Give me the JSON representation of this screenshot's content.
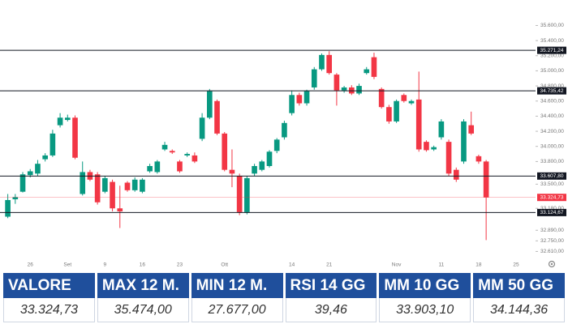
{
  "chart_data": {
    "type": "candlestick",
    "categories": [
      null,
      null,
      null,
      "26",
      null,
      null,
      null,
      null,
      "Set",
      null,
      null,
      null,
      null,
      "9",
      null,
      null,
      null,
      null,
      "16",
      null,
      null,
      null,
      null,
      "23",
      null,
      null,
      null,
      null,
      null,
      "Ott",
      null,
      null,
      null,
      null,
      null,
      null,
      null,
      null,
      "14",
      null,
      null,
      null,
      null,
      "21",
      null,
      null,
      null,
      null,
      null,
      null,
      null,
      null,
      "Nov",
      null,
      null,
      null,
      null,
      null,
      "11",
      null,
      null,
      null,
      null,
      "18",
      null,
      null,
      null,
      null,
      "25",
      null,
      null
    ],
    "open": [
      33070,
      33300,
      33400,
      33620,
      33640,
      33830,
      33880,
      34280,
      34350,
      34380,
      33370,
      33660,
      33630,
      33400,
      33530,
      33180,
      33520,
      33420,
      33400,
      33670,
      33660,
      33960,
      33940,
      33800,
      33880,
      33880,
      34100,
      34380,
      34600,
      34170,
      33690,
      33610,
      33130,
      33640,
      33690,
      33740,
      33940,
      34120,
      34440,
      34680,
      34570,
      34780,
      35020,
      35210,
      34950,
      34740,
      34780,
      34700,
      34970,
      35180,
      34760,
      34520,
      34330,
      34680,
      34570,
      34620,
      34060,
      33960,
      34120,
      34060,
      33690,
      33800,
      34280,
      33870,
      33800,
      null,
      null,
      null,
      null,
      null,
      null
    ],
    "high": [
      33370,
      33370,
      33660,
      33700,
      33820,
      33910,
      34220,
      34440,
      34420,
      34410,
      33800,
      33690,
      33660,
      33610,
      33560,
      33480,
      33540,
      33590,
      33580,
      33770,
      33820,
      34060,
      33960,
      33820,
      33920,
      33920,
      34440,
      34760,
      34620,
      34190,
      33960,
      33640,
      33610,
      33770,
      33820,
      33950,
      34110,
      34340,
      34740,
      34710,
      34750,
      35050,
      35230,
      35260,
      34970,
      34800,
      34810,
      34830,
      35050,
      35240,
      34780,
      34550,
      34620,
      34700,
      34620,
      34990,
      34080,
      34010,
      34360,
      34090,
      33720,
      34360,
      34460,
      33890,
      33820,
      null,
      null,
      null,
      null,
      null,
      null
    ],
    "low": [
      33050,
      33240,
      33390,
      33590,
      33610,
      33800,
      33860,
      34250,
      34330,
      33830,
      33350,
      33540,
      33230,
      33380,
      33140,
      32920,
      33400,
      33400,
      33380,
      33650,
      33640,
      33940,
      33900,
      33650,
      33860,
      33780,
      34070,
      34360,
      34150,
      33670,
      33460,
      33090,
      33100,
      33610,
      33670,
      33720,
      33910,
      34090,
      34410,
      34540,
      34540,
      34750,
      35000,
      34950,
      34540,
      34710,
      34680,
      34680,
      34950,
      34890,
      34500,
      34300,
      34310,
      34580,
      34550,
      33930,
      33930,
      33940,
      34090,
      33610,
      33530,
      33770,
      34150,
      33770,
      32760,
      null,
      null,
      null,
      null,
      null,
      null
    ],
    "close": [
      33290,
      33330,
      33630,
      33670,
      33770,
      33880,
      34170,
      34380,
      34380,
      33850,
      33660,
      33560,
      33260,
      33580,
      33180,
      33140,
      33420,
      33560,
      33560,
      33740,
      33800,
      34020,
      33920,
      33670,
      33900,
      33800,
      34380,
      34730,
      34170,
      33690,
      33640,
      33130,
      33580,
      33740,
      33800,
      33930,
      34090,
      34310,
      34680,
      34570,
      34730,
      35020,
      35210,
      34970,
      34740,
      34780,
      34700,
      34800,
      35020,
      34920,
      34520,
      34330,
      34600,
      34600,
      34600,
      33960,
      33950,
      33990,
      34330,
      33640,
      33560,
      34330,
      34170,
      33800,
      33324.73,
      null,
      null,
      null,
      null,
      null,
      null
    ],
    "up_color": "#089981",
    "down_color": "#f23645",
    "ylim": [
      32400,
      35830
    ],
    "yticks": [
      {
        "value": 35600,
        "label": "35.600,00"
      },
      {
        "value": 35400,
        "label": "35.400,00"
      },
      {
        "value": 35200,
        "label": "35.200,00"
      },
      {
        "value": 35000,
        "label": "35.000,00"
      },
      {
        "value": 34800,
        "label": "34.800,00"
      },
      {
        "value": 34600,
        "label": "34.600,00"
      },
      {
        "value": 34400,
        "label": "34.400,00"
      },
      {
        "value": 34200,
        "label": "34.200,00"
      },
      {
        "value": 34000,
        "label": "34.000,00"
      },
      {
        "value": 33800,
        "label": "33.800,00"
      },
      {
        "value": 33500,
        "label": "33.500,00"
      },
      {
        "value": 33180,
        "label": "33.180,00"
      },
      {
        "value": 32890,
        "label": "32.890,00"
      },
      {
        "value": 32750,
        "label": "32.750,00"
      },
      {
        "value": 32610,
        "label": "32.610,00"
      }
    ],
    "levels": [
      {
        "value": 35271.24,
        "label": "35.271,24"
      },
      {
        "value": 34735.42,
        "label": "34.735,42"
      },
      {
        "value": 33607.8,
        "label": "33.607,80"
      },
      {
        "value": 33124.67,
        "label": "33.124,67"
      }
    ],
    "level_color": "#131722",
    "last": {
      "value": 33324.73,
      "label": "33.324,73"
    },
    "grid": false
  },
  "table": {
    "headers": [
      "VALORE",
      "MAX 12 M.",
      "MIN 12 M.",
      "RSI 14 GG",
      "MM 10 GG",
      "MM 50 GG"
    ],
    "values": [
      "33.324,73",
      "35.474,00",
      "27.677,00",
      "39,46",
      "33.903,10",
      "34.144,36"
    ]
  }
}
